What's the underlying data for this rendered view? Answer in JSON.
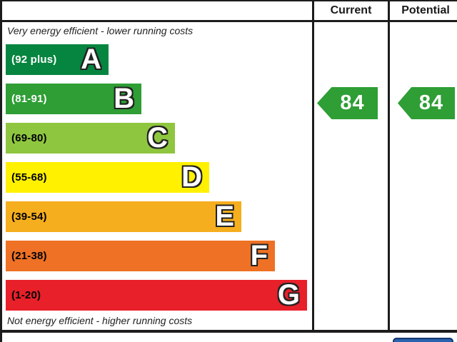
{
  "header": {
    "current_label": "Current",
    "potential_label": "Potential"
  },
  "chart": {
    "top_note": "Very energy efficient - lower running costs",
    "bottom_note": "Not energy efficient - higher running costs",
    "bands": [
      {
        "letter": "A",
        "range": "(92 plus)",
        "color": "#068540",
        "text_color": "#ffffff",
        "style": "width:144px;background:#068540;color:#ffffff"
      },
      {
        "letter": "B",
        "range": "(81-91)",
        "color": "#2E9E35",
        "text_color": "#ffffff",
        "style": "width:190px;background:#2E9E35;color:#ffffff"
      },
      {
        "letter": "C",
        "range": "(69-80)",
        "color": "#8FC63F",
        "text_color": "#000000",
        "style": "width:237px;background:#8FC63F;color:#000000"
      },
      {
        "letter": "D",
        "range": "(55-68)",
        "color": "#FFF100",
        "text_color": "#000000",
        "style": "width:285px;background:#FFF100;color:#000000"
      },
      {
        "letter": "E",
        "range": "(39-54)",
        "color": "#F5AE1E",
        "text_color": "#000000",
        "style": "width:330px;background:#F5AE1E;color:#000000"
      },
      {
        "letter": "F",
        "range": "(21-38)",
        "color": "#EE7125",
        "text_color": "#000000",
        "style": "width:377px;background:#EE7125;color:#000000"
      },
      {
        "letter": "G",
        "range": "(1-20)",
        "color": "#E8202A",
        "text_color": "#000000",
        "style": "width:422px;background:#E8202A;color:#000000"
      }
    ],
    "current_rating": {
      "value": "84",
      "band": "B",
      "color": "#2E9E35",
      "style": "background:#2E9E35"
    },
    "potential_rating": {
      "value": "84",
      "band": "B",
      "color": "#2E9E35",
      "style": "background:#2E9E35"
    }
  },
  "next_section_peek": {
    "fill": "#2A62AE",
    "border": "#16366E",
    "style": "background:#2A62AE;border-color:#16366E"
  },
  "chart_data": {
    "type": "bar",
    "title": "Energy efficiency rating chart",
    "categories": [
      "A",
      "B",
      "C",
      "D",
      "E",
      "F",
      "G"
    ],
    "band_score_ranges": [
      "92 plus",
      "81-91",
      "69-80",
      "55-68",
      "39-54",
      "21-38",
      "1-20"
    ],
    "band_colors": [
      "#068540",
      "#2E9E35",
      "#8FC63F",
      "#FFF100",
      "#F5AE1E",
      "#EE7125",
      "#E8202A"
    ],
    "bar_relative_lengths": [
      144,
      190,
      237,
      285,
      330,
      377,
      422
    ],
    "series": [
      {
        "name": "Current",
        "values": [
          84
        ],
        "band": "B",
        "color": "#2E9E35"
      },
      {
        "name": "Potential",
        "values": [
          84
        ],
        "band": "B",
        "color": "#2E9E35"
      }
    ],
    "annotations": [
      "Very energy efficient - lower running costs",
      "Not energy efficient - higher running costs"
    ],
    "xlabel": "",
    "ylabel": "",
    "legend_position": "top-right-columns",
    "grid": false
  }
}
